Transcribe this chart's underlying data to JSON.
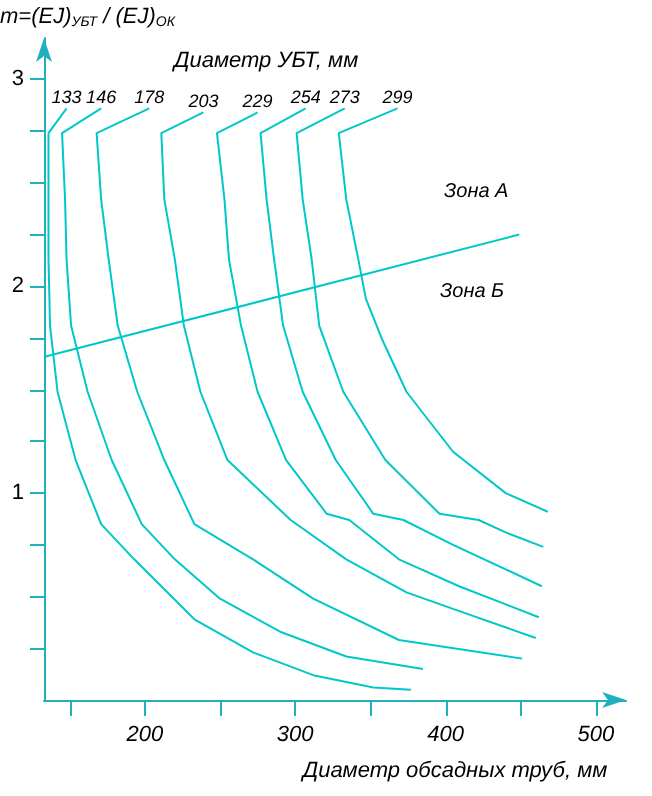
{
  "chart_data": {
    "type": "line",
    "legend_title": "Диаметр УБТ, мм",
    "xlabel": "Диаметр обсадных труб, мм",
    "ylabel": "m=(EJ)$_{УБТ}$ / (EJ)$_{ОК}$",
    "xlim": [
      133,
      520
    ],
    "ylim": [
      0,
      3.2
    ],
    "xticks": [
      {
        "value": 150,
        "label": null
      },
      200,
      {
        "value": 250,
        "label": null
      },
      300,
      {
        "value": 350,
        "label": null
      },
      400,
      {
        "value": 450,
        "label": null
      },
      500
    ],
    "yticks": [
      {
        "value": 0.25,
        "label": null
      },
      {
        "value": 0.5,
        "label": null
      },
      {
        "value": 0.75,
        "label": null
      },
      1,
      {
        "value": 1.25,
        "label": null
      },
      {
        "value": 1.5,
        "label": null
      },
      {
        "value": 1.75,
        "label": null
      },
      2,
      {
        "value": 2.25,
        "label": null
      },
      {
        "value": 2.5,
        "label": null
      },
      {
        "value": 2.75,
        "label": null
      },
      3
    ],
    "grid": false,
    "legend": false,
    "marker": "none",
    "line_style": "solid",
    "series": [
      {
        "name": "133",
        "color": "#00c8c8",
        "x": [
          148,
          136,
          136,
          137,
          142,
          154,
          171,
          193,
          233,
          272,
          312,
          352,
          377
        ],
        "values": [
          2.86,
          2.74,
          2.13,
          1.81,
          1.49,
          1.16,
          0.85,
          0.68,
          0.39,
          0.23,
          0.12,
          0.06,
          0.05
        ]
      },
      {
        "name": "146",
        "color": "#00c8c8",
        "x": [
          171,
          145,
          147,
          148,
          151,
          162,
          178,
          198,
          220,
          250,
          290,
          334,
          385
        ],
        "values": [
          2.86,
          2.74,
          2.42,
          2.13,
          1.81,
          1.49,
          1.16,
          0.85,
          0.68,
          0.49,
          0.33,
          0.21,
          0.15
        ]
      },
      {
        "name": "178",
        "color": "#00c8c8",
        "x": [
          203,
          168,
          171,
          176,
          182,
          195,
          213,
          233,
          272,
          312,
          369,
          451
        ],
        "values": [
          2.86,
          2.74,
          2.42,
          2.13,
          1.81,
          1.49,
          1.16,
          0.85,
          0.68,
          0.49,
          0.29,
          0.2
        ]
      },
      {
        "name": "203",
        "color": "#00c8c8",
        "x": [
          239,
          211,
          213,
          220,
          226,
          237,
          255,
          297,
          334,
          374,
          413,
          460
        ],
        "values": [
          2.84,
          2.74,
          2.42,
          2.13,
          1.81,
          1.49,
          1.16,
          0.87,
          0.68,
          0.52,
          0.42,
          0.3
        ]
      },
      {
        "name": "229",
        "color": "#00c8c8",
        "x": [
          275,
          248,
          253,
          256,
          264,
          275,
          294,
          321,
          336,
          369,
          409,
          462
        ],
        "values": [
          2.84,
          2.74,
          2.42,
          2.13,
          1.81,
          1.49,
          1.16,
          0.9,
          0.87,
          0.68,
          0.55,
          0.4
        ]
      },
      {
        "name": "254",
        "color": "#00c8c8",
        "x": [
          307,
          277,
          281,
          286,
          292,
          305,
          327,
          352,
          372,
          405,
          464
        ],
        "values": [
          2.86,
          2.74,
          2.42,
          2.13,
          1.81,
          1.49,
          1.16,
          0.9,
          0.87,
          0.75,
          0.55
        ]
      },
      {
        "name": "273",
        "color": "#00c8c8",
        "x": [
          333,
          301,
          305,
          311,
          316,
          332,
          360,
          396,
          422,
          440,
          465
        ],
        "values": [
          2.86,
          2.74,
          2.42,
          2.13,
          1.81,
          1.49,
          1.16,
          0.9,
          0.87,
          0.81,
          0.74
        ]
      },
      {
        "name": "299",
        "color": "#00c8c8",
        "x": [
          368,
          329,
          334,
          342,
          347,
          358,
          374,
          405,
          440,
          468
        ],
        "values": [
          2.86,
          2.74,
          2.42,
          2.13,
          1.94,
          1.74,
          1.49,
          1.2,
          1.0,
          0.91
        ]
      },
      {
        "color": "#00c8c8",
        "x": [
          134,
          449
        ],
        "values": [
          1.66,
          2.25
        ]
      }
    ],
    "annotations": [
      "Зона А",
      "Зона Б"
    ]
  }
}
